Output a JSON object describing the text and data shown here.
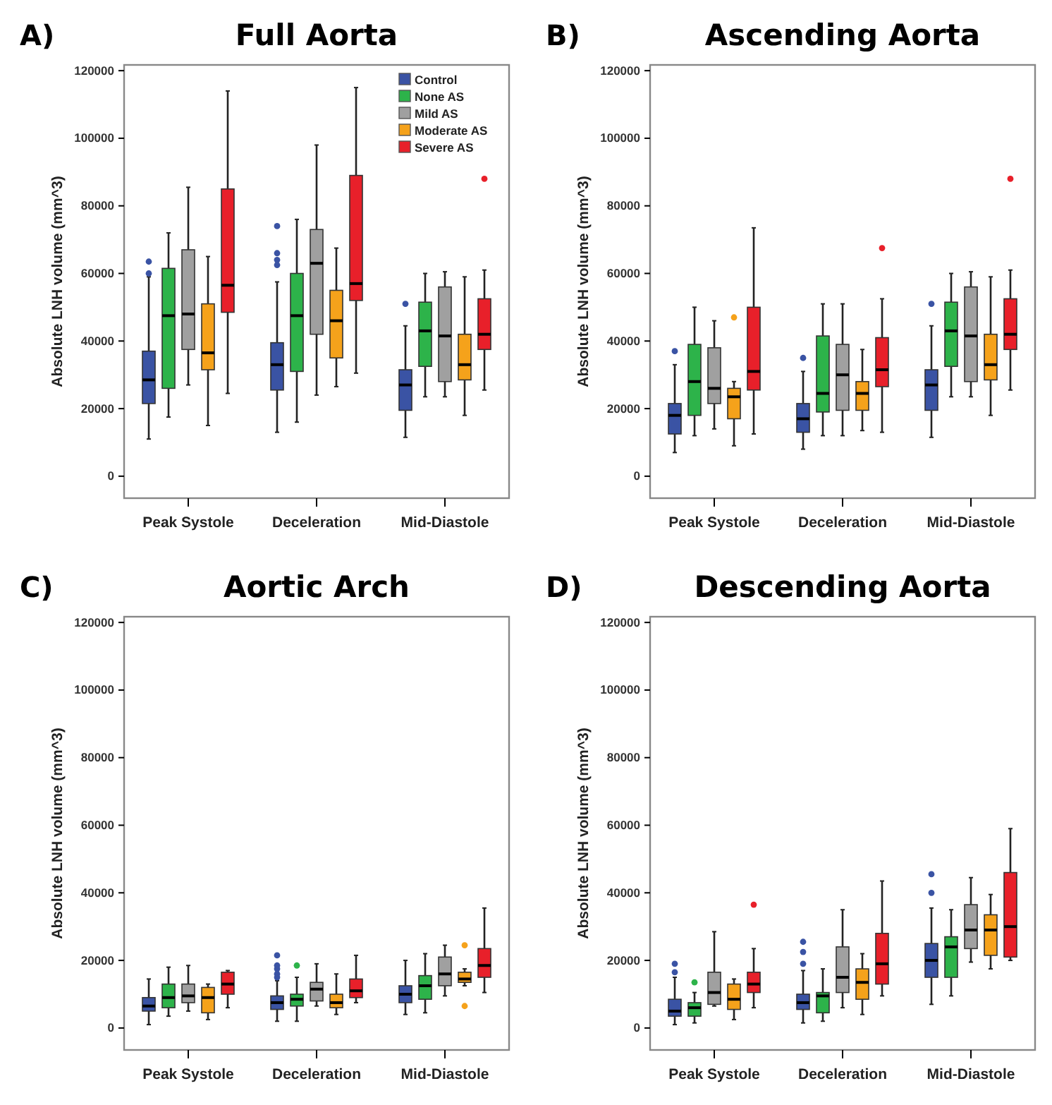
{
  "chart_data": [
    {
      "type": "box",
      "title": "Full Aorta",
      "annotations": [
        "A)"
      ],
      "ylabel": "Absolute LNH volume (mm^3)",
      "categories": [
        "Peak Systole",
        "Deceleration",
        "Mid-Diastole"
      ],
      "ylim": [
        -6500,
        121700
      ],
      "yticks": [
        0,
        20000,
        40000,
        60000,
        80000,
        100000,
        120000
      ],
      "legend": "top right",
      "series": [
        {
          "name": "Control",
          "color": "#3a53a4",
          "boxes": [
            {
              "low": 11000,
              "q1": 21500,
              "median": 28500,
              "q3": 37000,
              "high": 59000,
              "outliers": [
                60000,
                63500
              ]
            },
            {
              "low": 13000,
              "q1": 25500,
              "median": 33000,
              "q3": 39500,
              "high": 57500,
              "outliers": [
                62500,
                64000,
                66000,
                74000
              ]
            },
            {
              "low": 11500,
              "q1": 19500,
              "median": 27000,
              "q3": 31500,
              "high": 44500,
              "outliers": [
                51000
              ]
            }
          ]
        },
        {
          "name": "None AS",
          "color": "#2db34a",
          "boxes": [
            {
              "low": 17500,
              "q1": 26000,
              "median": 47500,
              "q3": 61500,
              "high": 72000
            },
            {
              "low": 16000,
              "q1": 31000,
              "median": 47500,
              "q3": 60000,
              "high": 76000
            },
            {
              "low": 23500,
              "q1": 32500,
              "median": 43000,
              "q3": 51500,
              "high": 60000
            }
          ]
        },
        {
          "name": "Mild AS",
          "color": "#a0a0a0",
          "boxes": [
            {
              "low": 27000,
              "q1": 37500,
              "median": 48000,
              "q3": 67000,
              "high": 85500
            },
            {
              "low": 24000,
              "q1": 42000,
              "median": 63000,
              "q3": 73000,
              "high": 98000
            },
            {
              "low": 23500,
              "q1": 28000,
              "median": 41500,
              "q3": 56000,
              "high": 60500
            }
          ]
        },
        {
          "name": "Moderate AS",
          "color": "#f5a21b",
          "boxes": [
            {
              "low": 15000,
              "q1": 31500,
              "median": 36500,
              "q3": 51000,
              "high": 65000
            },
            {
              "low": 26500,
              "q1": 35000,
              "median": 46000,
              "q3": 55000,
              "high": 67500
            },
            {
              "low": 18000,
              "q1": 28500,
              "median": 33000,
              "q3": 42000,
              "high": 59000
            }
          ]
        },
        {
          "name": "Severe AS",
          "color": "#e8202a",
          "boxes": [
            {
              "low": 24500,
              "q1": 48500,
              "median": 56500,
              "q3": 85000,
              "high": 114000
            },
            {
              "low": 30500,
              "q1": 52000,
              "median": 57000,
              "q3": 89000,
              "high": 115000
            },
            {
              "low": 25500,
              "q1": 37500,
              "median": 42000,
              "q3": 52500,
              "high": 61000,
              "outliers": [
                88000
              ]
            }
          ]
        }
      ]
    },
    {
      "type": "box",
      "title": "Ascending Aorta",
      "annotations": [
        "B)"
      ],
      "ylabel": "Absolute LNH volume (mm^3)",
      "categories": [
        "Peak Systole",
        "Deceleration",
        "Mid-Diastole"
      ],
      "ylim": [
        -6500,
        121700
      ],
      "yticks": [
        0,
        20000,
        40000,
        60000,
        80000,
        100000,
        120000
      ],
      "series": [
        {
          "color": "#3a53a4",
          "boxes": [
            {
              "low": 7000,
              "q1": 12500,
              "median": 18000,
              "q3": 21500,
              "high": 33000,
              "outliers": [
                37000
              ]
            },
            {
              "low": 8000,
              "q1": 13000,
              "median": 17000,
              "q3": 21500,
              "high": 31000,
              "outliers": [
                35000
              ]
            },
            {
              "low": 11500,
              "q1": 19500,
              "median": 27000,
              "q3": 31500,
              "high": 44500,
              "outliers": [
                51000
              ]
            }
          ]
        },
        {
          "color": "#2db34a",
          "boxes": [
            {
              "low": 12000,
              "q1": 18000,
              "median": 28000,
              "q3": 39000,
              "high": 50000
            },
            {
              "low": 12000,
              "q1": 19000,
              "median": 24500,
              "q3": 41500,
              "high": 51000
            },
            {
              "low": 23500,
              "q1": 32500,
              "median": 43000,
              "q3": 51500,
              "high": 60000
            }
          ]
        },
        {
          "color": "#a0a0a0",
          "boxes": [
            {
              "low": 14000,
              "q1": 21500,
              "median": 26000,
              "q3": 38000,
              "high": 46000
            },
            {
              "low": 12000,
              "q1": 19500,
              "median": 30000,
              "q3": 39000,
              "high": 51000
            },
            {
              "low": 23500,
              "q1": 28000,
              "median": 41500,
              "q3": 56000,
              "high": 60500
            }
          ]
        },
        {
          "color": "#f5a21b",
          "boxes": [
            {
              "low": 9000,
              "q1": 17000,
              "median": 23500,
              "q3": 26000,
              "high": 28000,
              "outliers": [
                47000
              ]
            },
            {
              "low": 13500,
              "q1": 19500,
              "median": 24500,
              "q3": 28000,
              "high": 37500
            },
            {
              "low": 18000,
              "q1": 28500,
              "median": 33000,
              "q3": 42000,
              "high": 59000
            }
          ]
        },
        {
          "color": "#e8202a",
          "boxes": [
            {
              "low": 12500,
              "q1": 25500,
              "median": 31000,
              "q3": 50000,
              "high": 73500
            },
            {
              "low": 13000,
              "q1": 26500,
              "median": 31500,
              "q3": 41000,
              "high": 52500,
              "outliers": [
                67500
              ]
            },
            {
              "low": 25500,
              "q1": 37500,
              "median": 42000,
              "q3": 52500,
              "high": 61000,
              "outliers": [
                88000
              ]
            }
          ]
        }
      ]
    },
    {
      "type": "box",
      "title": "Aortic Arch",
      "annotations": [
        "C)"
      ],
      "ylabel": "Absolute LNH volume (mm^3)",
      "categories": [
        "Peak Systole",
        "Deceleration",
        "Mid-Diastole"
      ],
      "ylim": [
        -6500,
        121700
      ],
      "yticks": [
        0,
        20000,
        40000,
        60000,
        80000,
        100000,
        120000
      ],
      "series": [
        {
          "color": "#3a53a4",
          "boxes": [
            {
              "low": 1000,
              "q1": 5000,
              "median": 6500,
              "q3": 9000,
              "high": 14500
            },
            {
              "low": 2000,
              "q1": 5500,
              "median": 7500,
              "q3": 9500,
              "high": 14000,
              "outliers": [
                15000,
                16000,
                17500,
                18500,
                21500
              ]
            },
            {
              "low": 4000,
              "q1": 7500,
              "median": 10000,
              "q3": 12500,
              "high": 20000
            }
          ]
        },
        {
          "color": "#2db34a",
          "boxes": [
            {
              "low": 3500,
              "q1": 6000,
              "median": 9000,
              "q3": 13000,
              "high": 18000
            },
            {
              "low": 2000,
              "q1": 6500,
              "median": 8500,
              "q3": 10000,
              "high": 15000,
              "outliers": [
                18500
              ]
            },
            {
              "low": 4500,
              "q1": 8500,
              "median": 12500,
              "q3": 15500,
              "high": 22000
            }
          ]
        },
        {
          "color": "#a0a0a0",
          "boxes": [
            {
              "low": 5000,
              "q1": 7500,
              "median": 9500,
              "q3": 13000,
              "high": 18500
            },
            {
              "low": 6500,
              "q1": 8000,
              "median": 11500,
              "q3": 13500,
              "high": 19000
            },
            {
              "low": 9500,
              "q1": 12500,
              "median": 16000,
              "q3": 21000,
              "high": 24500
            }
          ]
        },
        {
          "color": "#f5a21b",
          "boxes": [
            {
              "low": 2500,
              "q1": 4500,
              "median": 9000,
              "q3": 12000,
              "high": 13000
            },
            {
              "low": 4000,
              "q1": 6000,
              "median": 7500,
              "q3": 10000,
              "high": 16000
            },
            {
              "low": 12500,
              "q1": 13500,
              "median": 14500,
              "q3": 16500,
              "high": 17500,
              "outliers": [
                6500,
                24500
              ]
            }
          ]
        },
        {
          "color": "#e8202a",
          "boxes": [
            {
              "low": 6000,
              "q1": 10000,
              "median": 13000,
              "q3": 16500,
              "high": 17000
            },
            {
              "low": 7500,
              "q1": 9000,
              "median": 11000,
              "q3": 14500,
              "high": 21500
            },
            {
              "low": 10500,
              "q1": 15000,
              "median": 18500,
              "q3": 23500,
              "high": 35500
            }
          ]
        }
      ]
    },
    {
      "type": "box",
      "title": "Descending Aorta",
      "annotations": [
        "D)"
      ],
      "ylabel": "Absolute LNH volume (mm^3)",
      "categories": [
        "Peak Systole",
        "Deceleration",
        "Mid-Diastole"
      ],
      "ylim": [
        -6500,
        121700
      ],
      "yticks": [
        0,
        20000,
        40000,
        60000,
        80000,
        100000,
        120000
      ],
      "series": [
        {
          "color": "#3a53a4",
          "boxes": [
            {
              "low": 1000,
              "q1": 3500,
              "median": 5000,
              "q3": 8500,
              "high": 15000,
              "outliers": [
                16500,
                19000
              ]
            },
            {
              "low": 1500,
              "q1": 5500,
              "median": 7500,
              "q3": 10000,
              "high": 17000,
              "outliers": [
                19000,
                22500,
                25500
              ]
            },
            {
              "low": 7000,
              "q1": 15000,
              "median": 20000,
              "q3": 25000,
              "high": 35500,
              "outliers": [
                40000,
                45500
              ]
            }
          ]
        },
        {
          "color": "#2db34a",
          "boxes": [
            {
              "low": 1500,
              "q1": 3500,
              "median": 6000,
              "q3": 7500,
              "high": 10500,
              "outliers": [
                13500
              ]
            },
            {
              "low": 2000,
              "q1": 4500,
              "median": 9500,
              "q3": 10500,
              "high": 17500
            },
            {
              "low": 9500,
              "q1": 15000,
              "median": 24000,
              "q3": 27000,
              "high": 35000
            }
          ]
        },
        {
          "color": "#a0a0a0",
          "boxes": [
            {
              "low": 6500,
              "q1": 7000,
              "median": 10500,
              "q3": 16500,
              "high": 28500
            },
            {
              "low": 6000,
              "q1": 10500,
              "median": 15000,
              "q3": 24000,
              "high": 35000
            },
            {
              "low": 19500,
              "q1": 23500,
              "median": 29000,
              "q3": 36500,
              "high": 44500
            }
          ]
        },
        {
          "color": "#f5a21b",
          "boxes": [
            {
              "low": 2500,
              "q1": 5500,
              "median": 8500,
              "q3": 13000,
              "high": 14500
            },
            {
              "low": 4000,
              "q1": 8500,
              "median": 13500,
              "q3": 17500,
              "high": 22000
            },
            {
              "low": 17500,
              "q1": 21500,
              "median": 29000,
              "q3": 33500,
              "high": 39500
            }
          ]
        },
        {
          "color": "#e8202a",
          "boxes": [
            {
              "low": 6000,
              "q1": 10500,
              "median": 13000,
              "q3": 16500,
              "high": 23500,
              "outliers": [
                36500
              ]
            },
            {
              "low": 9500,
              "q1": 13000,
              "median": 19000,
              "q3": 28000,
              "high": 43500
            },
            {
              "low": 20000,
              "q1": 21000,
              "median": 30000,
              "q3": 46000,
              "high": 59000
            }
          ]
        }
      ]
    }
  ]
}
